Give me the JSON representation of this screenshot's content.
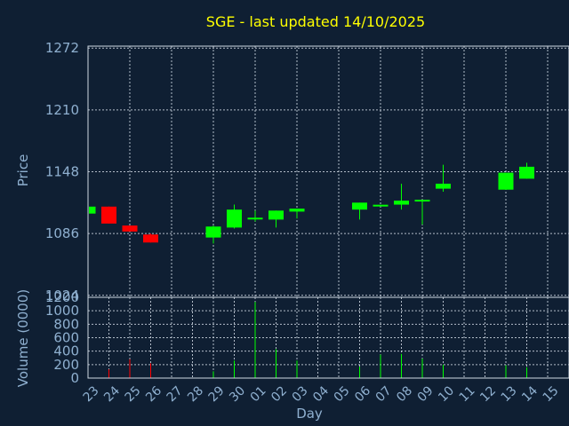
{
  "chart_data": {
    "type": "candlestick",
    "title": "SGE - last updated 14/10/2025",
    "xlabel": "Day",
    "price_panel": {
      "ylabel": "Price",
      "ylim": [
        1022,
        1274
      ],
      "yticks": [
        1024,
        1086,
        1148,
        1210,
        1272
      ]
    },
    "volume_panel": {
      "ylabel": "Volume (0000)",
      "ylim": [
        0,
        1200
      ],
      "yticks": [
        0,
        200,
        400,
        600,
        800,
        1000,
        1200
      ]
    },
    "x_tick_labels": [
      "23",
      "24",
      "25",
      "26",
      "27",
      "28",
      "29",
      "30",
      "01",
      "02",
      "03",
      "04",
      "05",
      "06",
      "07",
      "08",
      "09",
      "10",
      "11",
      "12",
      "13",
      "14",
      "15"
    ],
    "up_color": "#00ff00",
    "down_color": "#ff0000",
    "candles": [
      {
        "day": "23",
        "open": 1106,
        "close": 1113,
        "high": 1113,
        "low": 1106,
        "volume": 0
      },
      {
        "day": "24",
        "open": 1113,
        "close": 1096,
        "high": 1113,
        "low": 1096,
        "volume": 130
      },
      {
        "day": "25",
        "open": 1094,
        "close": 1088,
        "high": 1094,
        "low": 1088,
        "volume": 280
      },
      {
        "day": "26",
        "open": 1085,
        "close": 1077,
        "high": 1086,
        "low": 1077,
        "volume": 220
      },
      {
        "day": "29",
        "open": 1082,
        "close": 1093,
        "high": 1094,
        "low": 1076,
        "volume": 100
      },
      {
        "day": "30",
        "open": 1092,
        "close": 1110,
        "high": 1115,
        "low": 1091,
        "volume": 260
      },
      {
        "day": "01",
        "open": 1100,
        "close": 1101,
        "high": 1109,
        "low": 1098,
        "volume": 1130
      },
      {
        "day": "02",
        "open": 1100,
        "close": 1109,
        "high": 1109,
        "low": 1092,
        "volume": 430
      },
      {
        "day": "03",
        "open": 1108,
        "close": 1111,
        "high": 1111,
        "low": 1101,
        "volume": 260
      },
      {
        "day": "06",
        "open": 1110,
        "close": 1117,
        "high": 1117,
        "low": 1100,
        "volume": 170
      },
      {
        "day": "07",
        "open": 1114,
        "close": 1114,
        "high": 1114,
        "low": 1114,
        "volume": 350
      },
      {
        "day": "08",
        "open": 1115,
        "close": 1119,
        "high": 1136,
        "low": 1110,
        "volume": 360
      },
      {
        "day": "09",
        "open": 1119,
        "close": 1119,
        "high": 1119,
        "low": 1095,
        "volume": 290
      },
      {
        "day": "10",
        "open": 1131,
        "close": 1136,
        "high": 1155,
        "low": 1128,
        "volume": 200
      },
      {
        "day": "13",
        "open": 1130,
        "close": 1147,
        "high": 1147,
        "low": 1130,
        "volume": 190
      },
      {
        "day": "14",
        "open": 1141,
        "close": 1153,
        "high": 1157,
        "low": 1141,
        "volume": 160
      }
    ]
  }
}
